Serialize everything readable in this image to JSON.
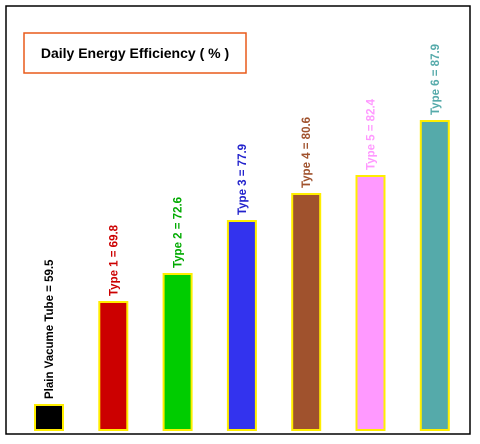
{
  "chart_data": {
    "type": "bar",
    "title": "Daily Energy Efficiency ( % )",
    "categories": [
      "Plain Vacume Tube",
      "Type 1",
      "Type 2",
      "Type 3",
      "Type 4",
      "Type 5",
      "Type 6"
    ],
    "values": [
      59.5,
      69.8,
      72.6,
      77.9,
      80.6,
      82.4,
      87.9
    ],
    "labels": [
      "Plain Vacume Tube = 59.5",
      "Type 1 = 69.8",
      "Type 2 = 72.6",
      "Type 3 = 77.9",
      "Type 4 = 80.6",
      "Type 5 = 82.4",
      "Type 6 = 87.9"
    ],
    "bar_colors": [
      "#000000",
      "#cc0000",
      "#00cc00",
      "#3333ee",
      "#a0522d",
      "#ff99ff",
      "#55aaaa"
    ],
    "label_colors": [
      "#000000",
      "#cc0000",
      "#00aa00",
      "#2222cc",
      "#a0522d",
      "#ff99ff",
      "#55aaaa"
    ],
    "bar_outline_color": "#ffee00",
    "title_box_color": "#e85a1a",
    "ylim": [
      57,
      90
    ],
    "xlabel": "",
    "ylabel": "",
    "grid": false,
    "legend": "none"
  }
}
